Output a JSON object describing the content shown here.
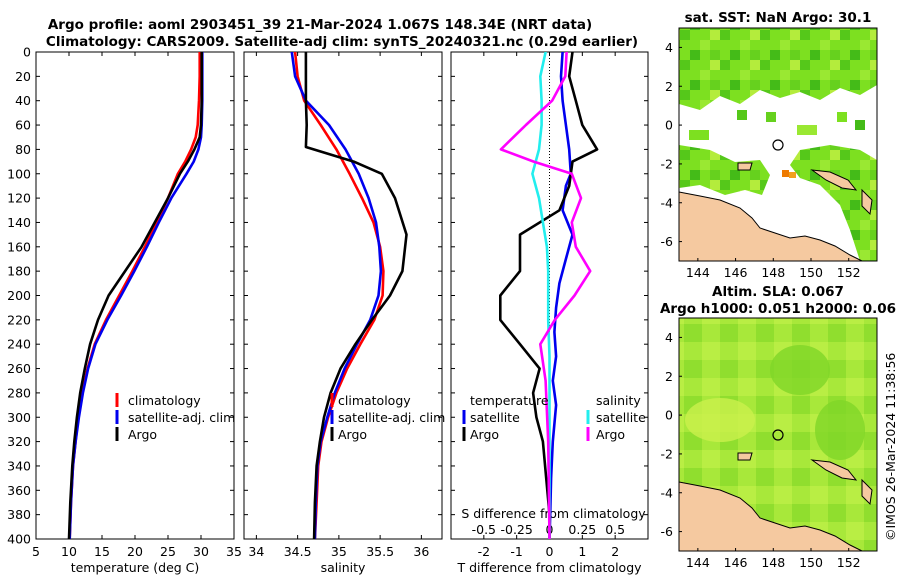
{
  "titles": {
    "main_line1": "Argo profile: aoml  2903451_39  21-Mar-2024  1.067S  148.34E  (NRT data)",
    "main_line2": "Climatology: CARS2009. Satellite-adj clim: synTS_20240321.nc (0.29d earlier)",
    "sst_map": "sat. SST: NaN  Argo: 30.1",
    "sla_map_line1": "Altim. SLA: 0.067",
    "sla_map_line2": "Argo h1000: 0.051  h2000: 0.06",
    "copyright": "©IMOS 26-Mar-2024 11:38:56"
  },
  "colors": {
    "climatology": "#ff0000",
    "satellite": "#0000ee",
    "argo": "#000000",
    "sal_climatology": "#ff00ff",
    "sal_satellite": "#22eeee",
    "land": "#f5c9a0"
  },
  "chart_data": [
    {
      "type": "line",
      "name": "temperature-profile",
      "xlabel": "temperature (deg C)",
      "ylabel": "",
      "xlim": [
        5,
        35
      ],
      "ylim": [
        400,
        0
      ],
      "xticks": [
        "5",
        "10",
        "15",
        "20",
        "25",
        "30",
        "35"
      ],
      "xtick_values": [
        5,
        10,
        15,
        20,
        25,
        30,
        35
      ],
      "yticks": [
        "0",
        "20",
        "40",
        "60",
        "80",
        "100",
        "120",
        "140",
        "160",
        "180",
        "200",
        "220",
        "240",
        "260",
        "280",
        "300",
        "320",
        "340",
        "360",
        "380",
        "400"
      ],
      "ytick_values": [
        0,
        20,
        40,
        60,
        80,
        100,
        120,
        140,
        160,
        180,
        200,
        220,
        240,
        260,
        280,
        300,
        320,
        340,
        360,
        380,
        400
      ],
      "legend": [
        "climatology",
        "satellite-adj. clim",
        "Argo"
      ],
      "series": [
        {
          "name": "climatology",
          "color": "red",
          "x": [
            29.8,
            29.8,
            29.7,
            29.5,
            29.2,
            28.5,
            27.6,
            26.5,
            25.0,
            23.3,
            21.5,
            19.6,
            17.6,
            15.6,
            13.9,
            12.8,
            12.0,
            11.4,
            11.0,
            10.6,
            10.3,
            10.1
          ],
          "y": [
            0,
            20,
            40,
            60,
            70,
            80,
            90,
            100,
            120,
            140,
            160,
            180,
            200,
            220,
            240,
            260,
            280,
            300,
            320,
            340,
            370,
            400
          ]
        },
        {
          "name": "satellite-adj. clim",
          "color": "blue",
          "x": [
            30.2,
            30.2,
            30.2,
            30.1,
            30.0,
            29.6,
            28.9,
            27.8,
            25.5,
            23.6,
            21.8,
            19.9,
            17.9,
            15.8,
            14.0,
            12.9,
            12.1,
            11.5,
            11.0,
            10.6,
            10.3,
            10.1
          ],
          "y": [
            0,
            20,
            40,
            60,
            70,
            80,
            90,
            100,
            120,
            140,
            160,
            180,
            200,
            220,
            240,
            260,
            280,
            300,
            320,
            340,
            370,
            400
          ]
        },
        {
          "name": "Argo",
          "color": "black",
          "x": [
            30.1,
            30.1,
            30.1,
            30.0,
            29.8,
            29.0,
            28.0,
            26.8,
            25.0,
            23.0,
            21.0,
            18.5,
            16.0,
            14.4,
            13.2,
            12.4,
            11.7,
            11.2,
            10.8,
            10.5,
            10.2,
            10.0
          ],
          "y": [
            0,
            20,
            40,
            60,
            70,
            80,
            90,
            100,
            120,
            140,
            160,
            180,
            200,
            220,
            240,
            260,
            280,
            300,
            320,
            340,
            370,
            400
          ]
        }
      ]
    },
    {
      "type": "line",
      "name": "salinity-profile",
      "xlabel": "salinity",
      "xlim": [
        33.85,
        36.25
      ],
      "ylim": [
        400,
        0
      ],
      "xticks": [
        "34",
        "34.5",
        "35",
        "35.5",
        "36"
      ],
      "xtick_values": [
        34,
        34.5,
        35,
        35.5,
        36
      ],
      "legend": [
        "climatology",
        "satellite-adj. clim",
        "Argo"
      ],
      "series": [
        {
          "name": "climatology",
          "color": "red",
          "x": [
            34.47,
            34.5,
            34.58,
            34.78,
            34.97,
            35.13,
            35.28,
            35.42,
            35.5,
            35.54,
            35.53,
            35.43,
            35.26,
            35.1,
            34.97,
            34.87,
            34.79,
            34.75,
            34.73,
            34.71
          ],
          "y": [
            0,
            20,
            40,
            60,
            80,
            100,
            120,
            140,
            160,
            180,
            200,
            220,
            240,
            260,
            280,
            300,
            320,
            340,
            370,
            400
          ]
        },
        {
          "name": "satellite-adj. clim",
          "color": "blue",
          "x": [
            34.43,
            34.47,
            34.6,
            34.88,
            35.08,
            35.24,
            35.36,
            35.45,
            35.49,
            35.51,
            35.48,
            35.38,
            35.22,
            35.07,
            34.95,
            34.86,
            34.78,
            34.74,
            34.72,
            34.71
          ],
          "y": [
            0,
            20,
            40,
            60,
            80,
            100,
            120,
            140,
            160,
            180,
            200,
            220,
            240,
            260,
            280,
            300,
            320,
            340,
            370,
            400
          ]
        },
        {
          "name": "Argo",
          "color": "black",
          "x": [
            34.6,
            34.6,
            34.6,
            34.61,
            34.6,
            35.18,
            35.52,
            35.68,
            35.82,
            35.77,
            35.62,
            35.4,
            35.2,
            35.02,
            34.9,
            34.82,
            34.77,
            34.73,
            34.71,
            34.7
          ],
          "y": [
            0,
            20,
            40,
            60,
            78,
            90,
            100,
            120,
            150,
            180,
            200,
            220,
            240,
            260,
            280,
            300,
            320,
            340,
            370,
            400
          ]
        }
      ]
    },
    {
      "type": "line",
      "name": "difference-profile",
      "xlabel": "T difference from climatology",
      "secondary_xlabel": "S difference from climatology",
      "xlim": [
        -3,
        3
      ],
      "ylim": [
        400,
        0
      ],
      "xticks": [
        "-2",
        "-1",
        "0",
        "1",
        "2"
      ],
      "xtick_values": [
        -2,
        -1,
        0,
        1,
        2
      ],
      "secondary_xticks": [
        "-0.5",
        "-0.25",
        "0",
        "0.25",
        "0.5"
      ],
      "secondary_xtick_values": [
        -0.5,
        -0.25,
        0,
        0.25,
        0.5
      ],
      "legend_temperature_title": "temperature",
      "legend_salinity_title": "salinity",
      "legend_labels": [
        "satellite",
        "Argo"
      ],
      "series": [
        {
          "name": "T satellite",
          "color": "blue",
          "x": [
            0.4,
            0.35,
            0.4,
            0.5,
            0.6,
            0.65,
            0.5,
            0.4,
            0.7,
            0.5,
            0.3,
            0.2,
            0.15,
            0.2,
            0.1,
            0.2,
            0.1,
            0.05,
            0.02,
            0.0
          ],
          "y": [
            0,
            20,
            40,
            60,
            80,
            100,
            110,
            130,
            150,
            170,
            190,
            210,
            230,
            250,
            270,
            290,
            320,
            350,
            380,
            400
          ]
        },
        {
          "name": "T Argo",
          "color": "black",
          "x": [
            0.7,
            0.6,
            0.8,
            1.0,
            1.45,
            0.7,
            0.6,
            0.3,
            -0.9,
            -0.9,
            -1.5,
            -1.5,
            -0.9,
            -0.3,
            -0.5,
            -0.4,
            -0.2,
            -0.1,
            0.0,
            0.0
          ],
          "y": [
            0,
            20,
            40,
            60,
            80,
            90,
            110,
            130,
            150,
            180,
            200,
            220,
            240,
            260,
            280,
            300,
            320,
            350,
            380,
            400
          ]
        },
        {
          "name": "S satellite",
          "color": "cyan",
          "x": [
            -0.03,
            -0.07,
            -0.06,
            -0.06,
            -0.08,
            -0.13,
            -0.08,
            -0.05,
            -0.02,
            -0.01,
            -0.01,
            -0.01,
            0.0,
            0.0,
            0.0,
            0.0,
            0.0
          ],
          "y": [
            0,
            20,
            40,
            60,
            80,
            100,
            120,
            140,
            160,
            180,
            200,
            220,
            250,
            280,
            320,
            360,
            400
          ]
        },
        {
          "name": "S Argo",
          "color": "magenta",
          "x": [
            0.13,
            0.12,
            0.02,
            -0.18,
            -0.37,
            -0.12,
            0.17,
            0.24,
            0.17,
            0.2,
            0.31,
            0.19,
            0.04,
            -0.07,
            -0.03,
            -0.01,
            0.0
          ],
          "y": [
            0,
            20,
            40,
            60,
            80,
            90,
            100,
            120,
            140,
            160,
            180,
            200,
            220,
            240,
            270,
            320,
            400
          ]
        }
      ]
    },
    {
      "type": "heatmap",
      "name": "sst-map",
      "title": "sat. SST: NaN  Argo: 30.1",
      "xlim": [
        143.0,
        153.5
      ],
      "ylim": [
        -7.0,
        5.0
      ],
      "xticks": [
        "144",
        "146",
        "148",
        "150",
        "152"
      ],
      "xtick_values": [
        144,
        146,
        148,
        150,
        152
      ],
      "yticks": [
        "4",
        "2",
        "0",
        "-2",
        "-4",
        "-6"
      ],
      "ytick_values": [
        4,
        2,
        0,
        -2,
        -4,
        -6
      ],
      "argo_marker": {
        "lon": 148.34,
        "lat": -1.067
      }
    },
    {
      "type": "heatmap",
      "name": "sla-map",
      "title": "Altim. SLA: 0.067 / Argo h1000: 0.051  h2000: 0.06",
      "xlim": [
        143.0,
        153.5
      ],
      "ylim": [
        -7.0,
        5.0
      ],
      "xticks": [
        "144",
        "146",
        "148",
        "150",
        "152"
      ],
      "xtick_values": [
        144,
        146,
        148,
        150,
        152
      ],
      "yticks": [
        "4",
        "2",
        "0",
        "-2",
        "-4",
        "-6"
      ],
      "ytick_values": [
        4,
        2,
        0,
        -2,
        -4,
        -6
      ],
      "argo_marker": {
        "lon": 148.34,
        "lat": -1.067
      }
    }
  ]
}
